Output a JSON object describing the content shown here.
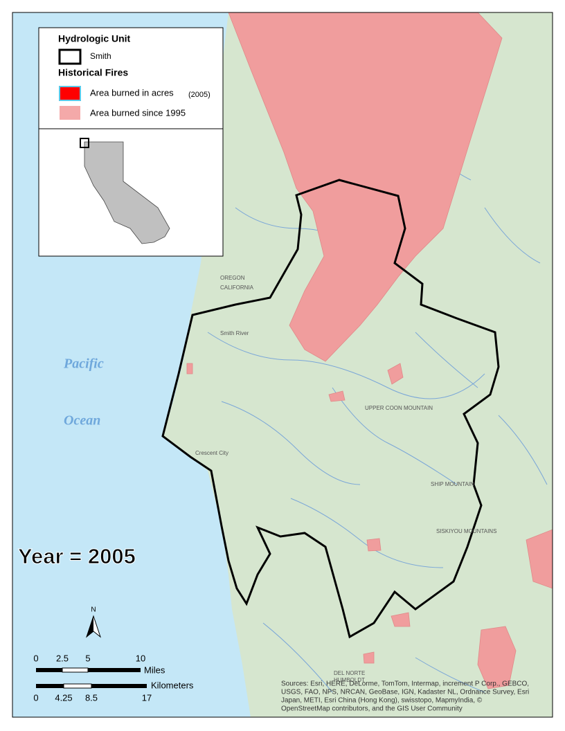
{
  "legend": {
    "hydrologic_unit_title": "Hydrologic Unit",
    "hydrologic_unit_item": "Smith",
    "fires_title": "Historical Fires",
    "fire_2005_label": "Area burned in acres",
    "fire_2005_year": "(2005)",
    "fire_since_label": "Area burned since 1995"
  },
  "ocean_labels": [
    "Pacific",
    "Ocean"
  ],
  "year_label": "Year = 2005",
  "north_label": "N",
  "scale_bar": {
    "miles_ticks": [
      "0",
      "2.5",
      "5",
      "10"
    ],
    "miles_unit": "Miles",
    "km_ticks": [
      "0",
      "4.25",
      "8.5",
      "17"
    ],
    "km_unit": "Kilometers"
  },
  "map_labels": [
    "OREGON",
    "CALIFORNIA",
    "Smith River",
    "Crescent City",
    "UPPER COON MOUNTAIN",
    "SHIP MOUNTAIN",
    "SISKIYOU MOUNTAINS",
    "DEL NORTE",
    "HUMBOLDT"
  ],
  "sources": [
    "Sources: Esri, HERE, DeLorme, TomTom, Intermap, increment P Corp., GEBCO,",
    "USGS, FAO, NPS, NRCAN, GeoBase, IGN, Kadaster NL, Ordnance Survey, Esri",
    "Japan, METI, Esri China (Hong Kong), swisstopo, MapmyIndia, ©",
    "OpenStreetMap contributors, and the GIS User Community"
  ]
}
